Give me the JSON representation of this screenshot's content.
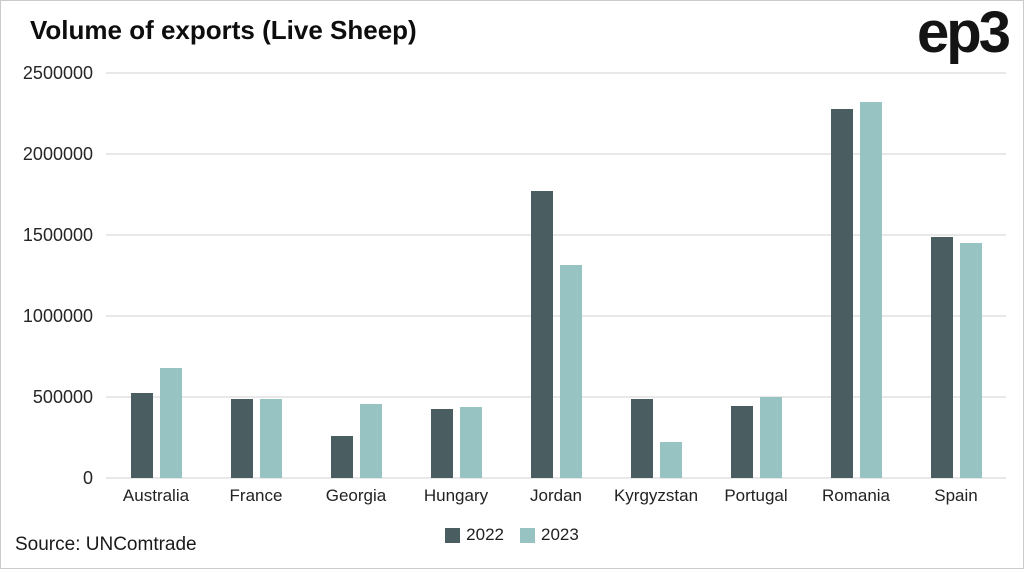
{
  "header": {
    "title": "Volume of exports (Live Sheep)",
    "logo": "ep3"
  },
  "footer": {
    "source": "Source: UNComtrade"
  },
  "chart_data": {
    "type": "bar",
    "title": "Volume of exports (Live Sheep)",
    "categories": [
      "Australia",
      "France",
      "Georgia",
      "Hungary",
      "Jordan",
      "Kyrgyzstan",
      "Portugal",
      "Romania",
      "Spain"
    ],
    "series": [
      {
        "name": "2022",
        "color": "#4a5d60",
        "values": [
          525000,
          490000,
          258000,
          426000,
          1770000,
          487000,
          445000,
          2280000,
          1490000
        ]
      },
      {
        "name": "2023",
        "color": "#97c3c2",
        "values": [
          680000,
          487000,
          455000,
          437000,
          1317000,
          225000,
          499000,
          2320000,
          1452000
        ]
      }
    ],
    "xlabel": "",
    "ylabel": "",
    "ylim": [
      0,
      2500000
    ],
    "yticks": [
      0,
      500000,
      1000000,
      1500000,
      2000000,
      2500000
    ],
    "grid": "horizontal",
    "legend_position": "bottom-center",
    "source": "Source: UNComtrade"
  }
}
